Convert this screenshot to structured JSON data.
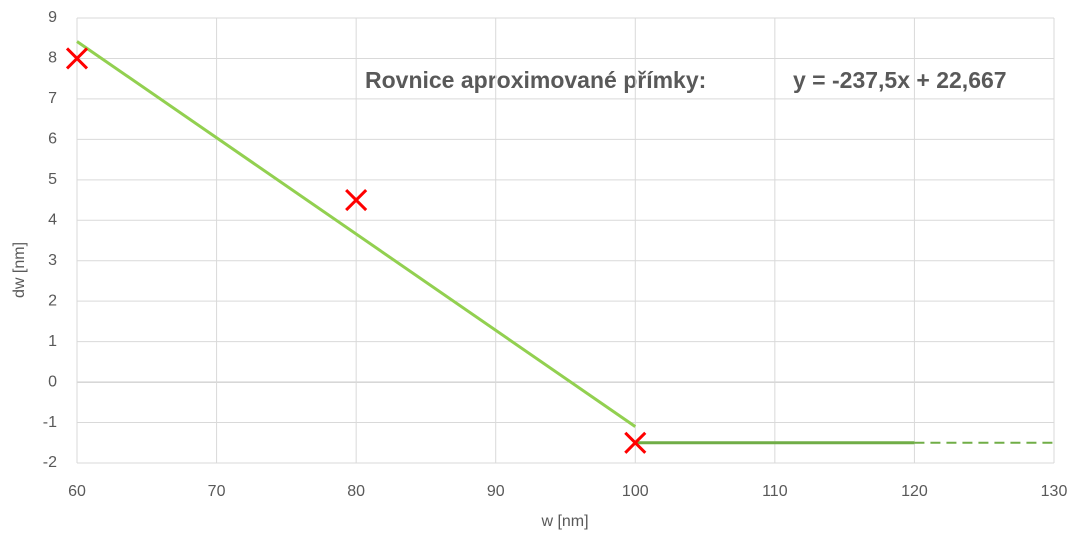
{
  "chart_data": {
    "type": "scatter",
    "xlabel": "w [nm]",
    "ylabel": "dw [nm]",
    "annotations": [
      "Rovnice aproximované přímky:",
      "y = -237,5x + 22,667"
    ],
    "xlim": [
      60,
      130
    ],
    "xticks": [
      60,
      70,
      80,
      90,
      100,
      110,
      120,
      130
    ],
    "ylim": [
      -2,
      9
    ],
    "yticks": [
      -2,
      -1,
      0,
      1,
      2,
      3,
      4,
      5,
      6,
      7,
      8,
      9
    ],
    "grid": true,
    "series": [
      {
        "style": "line",
        "color": "#92d050",
        "x": [
          60,
          100
        ],
        "values": [
          8.42,
          -1.1
        ]
      },
      {
        "style": "line",
        "color": "#70ad47",
        "x": [
          100,
          120
        ],
        "values": [
          -1.5,
          -1.5
        ]
      },
      {
        "style": "dashed",
        "color": "#70ad47",
        "x": [
          120,
          130
        ],
        "values": [
          -1.5,
          -1.5
        ]
      },
      {
        "style": "marker",
        "color": "#ff0000",
        "x": [
          60,
          80,
          100
        ],
        "values": [
          8,
          4.5,
          -1.5
        ]
      }
    ]
  }
}
